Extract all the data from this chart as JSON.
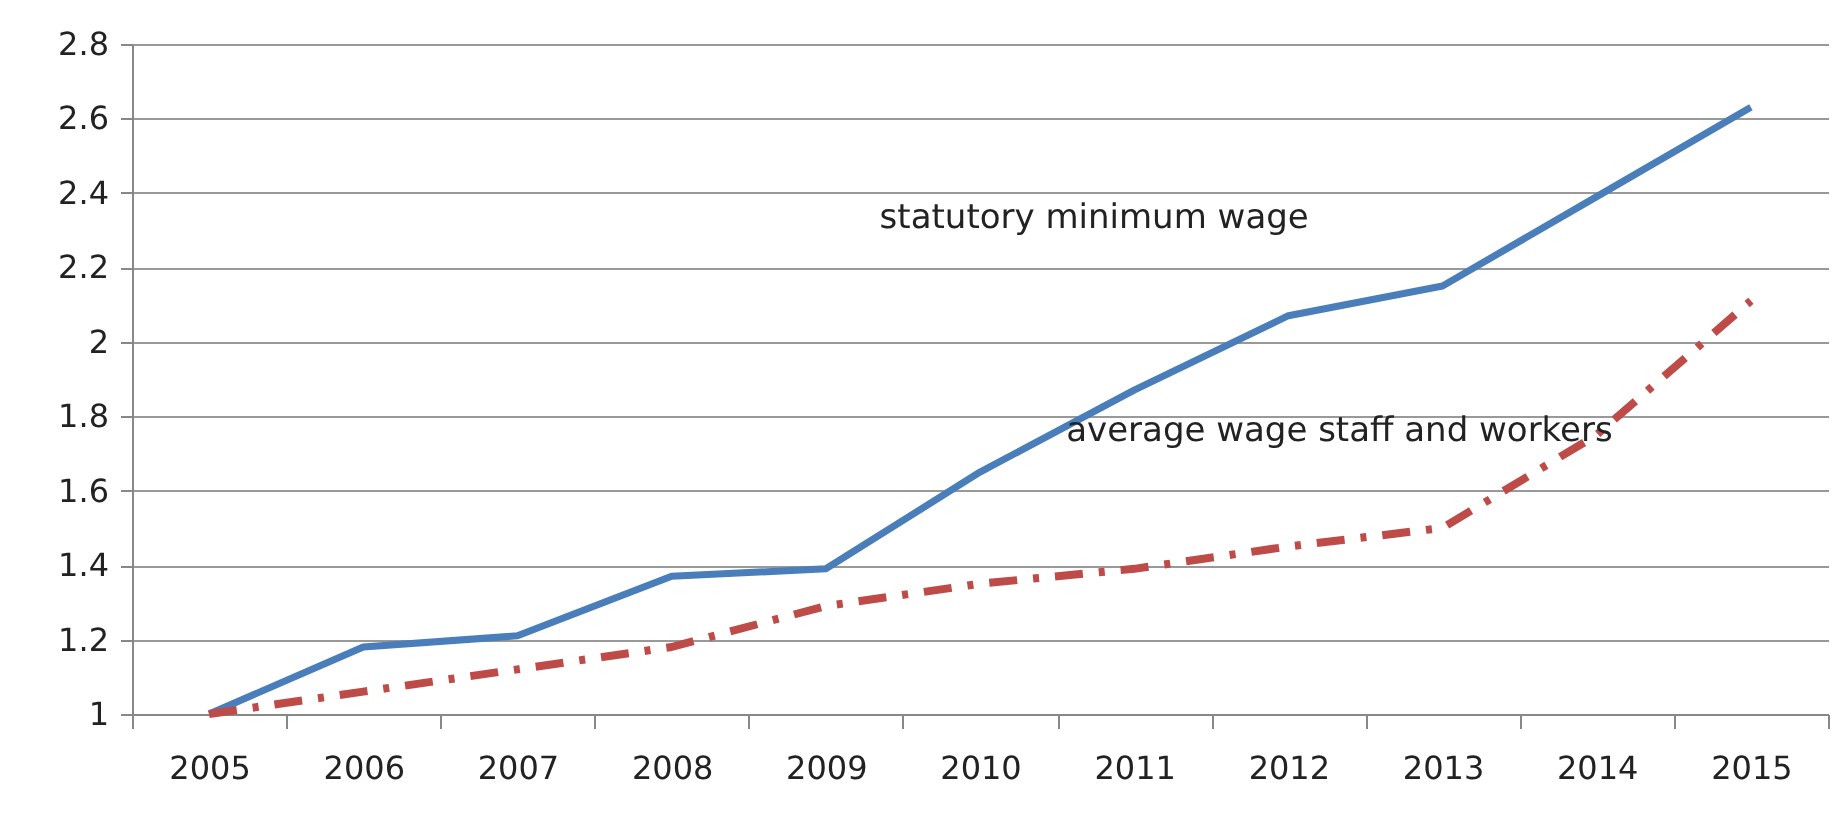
{
  "chart_data": {
    "type": "line",
    "categories": [
      "2005",
      "2006",
      "2007",
      "2008",
      "2009",
      "2010",
      "2011",
      "2012",
      "2013",
      "2014",
      "2015"
    ],
    "series": [
      {
        "name": "statutory minimum wage",
        "color": "#4a7ebb",
        "line_style": "solid",
        "values": [
          1.0,
          1.18,
          1.21,
          1.37,
          1.39,
          1.65,
          1.87,
          2.07,
          2.15,
          2.39,
          2.63
        ]
      },
      {
        "name": "average wage staff and workers",
        "color": "#be4b48",
        "line_style": "dashdot",
        "values": [
          1.0,
          1.06,
          1.12,
          1.18,
          1.29,
          1.35,
          1.39,
          1.45,
          1.5,
          1.75,
          2.11
        ]
      }
    ],
    "ylim": [
      1,
      2.8
    ],
    "yticks": [
      1,
      1.2,
      1.4,
      1.6,
      1.8,
      2,
      2.2,
      2.4,
      2.6,
      2.8
    ],
    "grid": "y",
    "marker": "none"
  }
}
